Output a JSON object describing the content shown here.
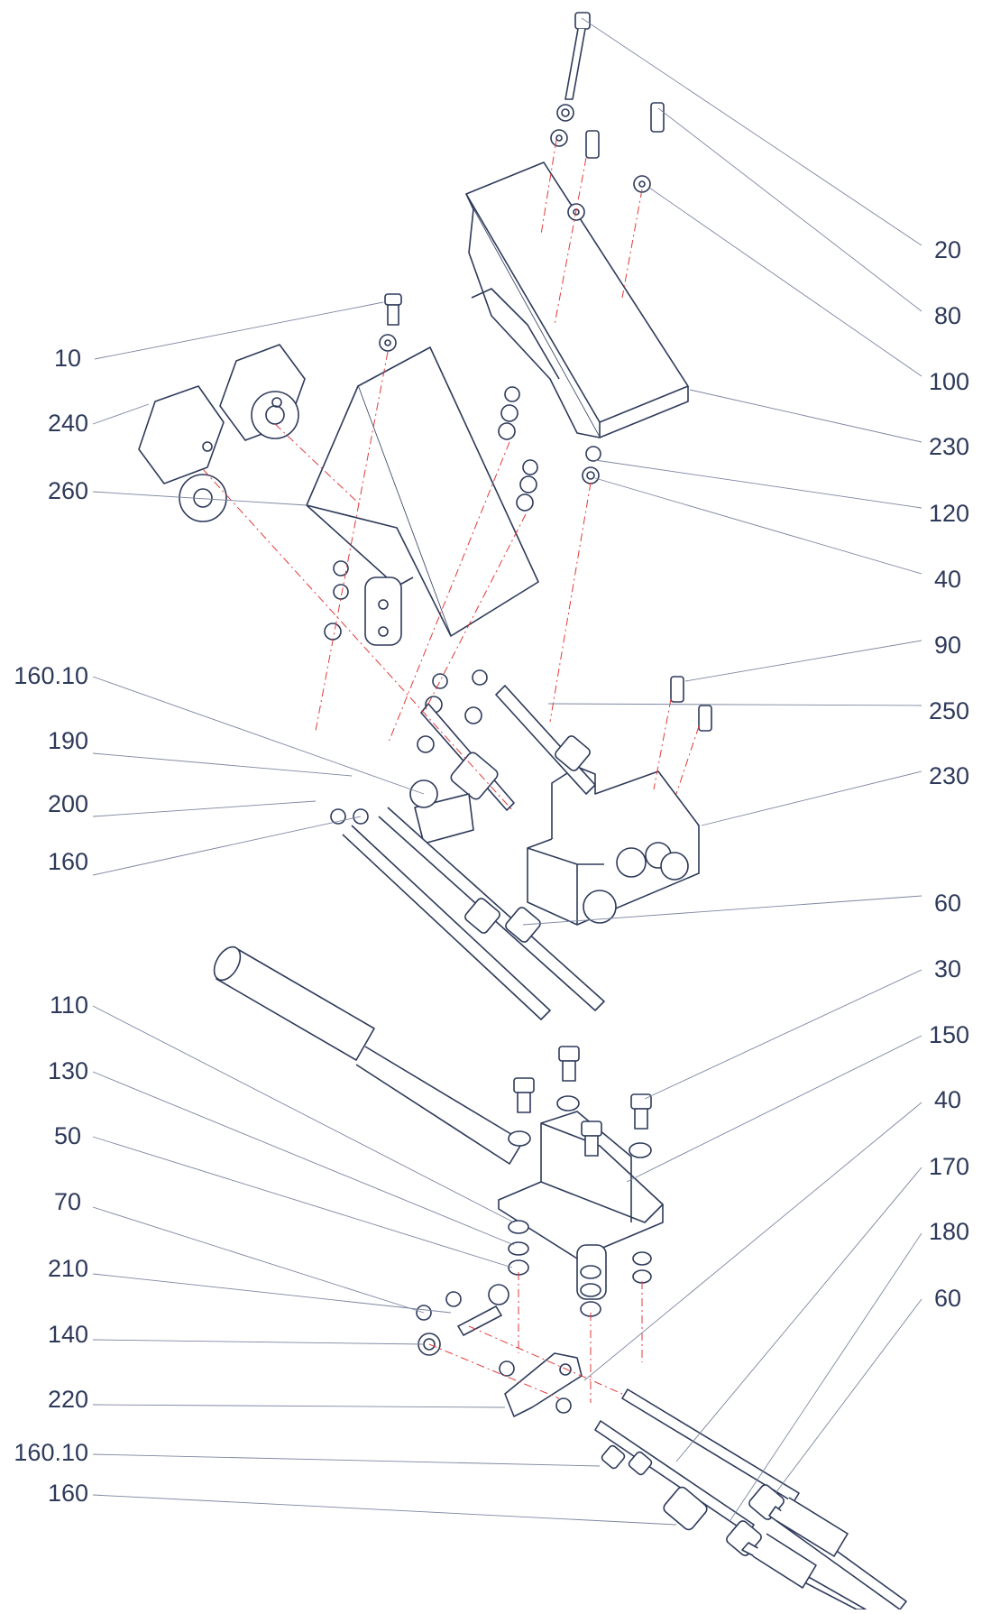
{
  "diagram": {
    "colors": {
      "ink": "#2e3a5a",
      "leader": "#7d86a0",
      "centerline": "#e23a3a",
      "fill": "#ffffff"
    },
    "callouts_left": [
      "10",
      "240",
      "260",
      "160.10",
      "190",
      "200",
      "160",
      "110",
      "130",
      "50",
      "70",
      "210",
      "140",
      "220",
      "160.10",
      "160"
    ],
    "callouts_right": [
      "20",
      "80",
      "100",
      "230",
      "120",
      "40",
      "90",
      "250",
      "230",
      "60",
      "30",
      "150",
      "40",
      "170",
      "180",
      "60"
    ]
  }
}
